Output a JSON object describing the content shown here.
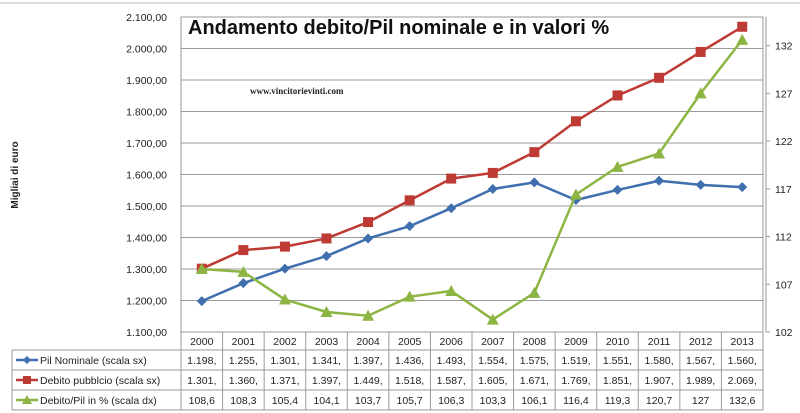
{
  "chart_data": {
    "type": "line",
    "title": "Andamento debito/Pil nominale e in valori %",
    "watermark": "www.vincitorievinti.com",
    "ylabel": "Migliai di euro",
    "ylim": [
      1100,
      2100
    ],
    "y2lim": [
      102,
      135
    ],
    "yticks": [
      "1.100,00",
      "1.200,00",
      "1.300,00",
      "1.400,00",
      "1.500,00",
      "1.600,00",
      "1.700,00",
      "1.800,00",
      "1.900,00",
      "2.000,00",
      "2.100,00"
    ],
    "y2ticks": [
      "102",
      "107",
      "112",
      "117",
      "122",
      "127",
      "132"
    ],
    "grid": true,
    "categories": [
      "2000",
      "2001",
      "2002",
      "2003",
      "2004",
      "2005",
      "2006",
      "2007",
      "2008",
      "2009",
      "2010",
      "2011",
      "2012",
      "2013"
    ],
    "series": [
      {
        "name": "Pil Nominale (scala sx)",
        "axis": "left",
        "color": "#3f6fae",
        "marker": "diamond",
        "values": [
          1198,
          1255,
          1301,
          1341,
          1397,
          1436,
          1493,
          1554,
          1575,
          1519,
          1551,
          1580,
          1567,
          1560
        ],
        "labels": [
          "1.198,",
          "1.255,",
          "1.301,",
          "1.341,",
          "1.397,",
          "1.436,",
          "1.493,",
          "1.554,",
          "1.575,",
          "1.519,",
          "1.551,",
          "1.580,",
          "1.567,",
          "1.560,"
        ]
      },
      {
        "name": "Debito pubblcio (scala sx)",
        "axis": "left",
        "color": "#be3a34",
        "marker": "square",
        "values": [
          1301,
          1360,
          1371,
          1397,
          1449,
          1518,
          1587,
          1605,
          1671,
          1769,
          1851,
          1907,
          1989,
          2069
        ],
        "labels": [
          "1.301,",
          "1.360,",
          "1.371,",
          "1.397,",
          "1.449,",
          "1.518,",
          "1.587,",
          "1.605,",
          "1.671,",
          "1.769,",
          "1.851,",
          "1.907,",
          "1.989,",
          "2.069,"
        ]
      },
      {
        "name": "Debito/Pil in %  (scala dx)",
        "axis": "right",
        "color": "#8db543",
        "marker": "triangle",
        "values": [
          108.6,
          108.3,
          105.4,
          104.1,
          103.7,
          105.7,
          106.3,
          103.3,
          106.1,
          116.4,
          119.3,
          120.7,
          127,
          132.6
        ],
        "labels": [
          "108,6",
          "108,3",
          "105,4",
          "104,1",
          "103,7",
          "105,7",
          "106,3",
          "103,3",
          "106,1",
          "116,4",
          "119,3",
          "120,7",
          "127",
          "132,6"
        ]
      }
    ]
  }
}
